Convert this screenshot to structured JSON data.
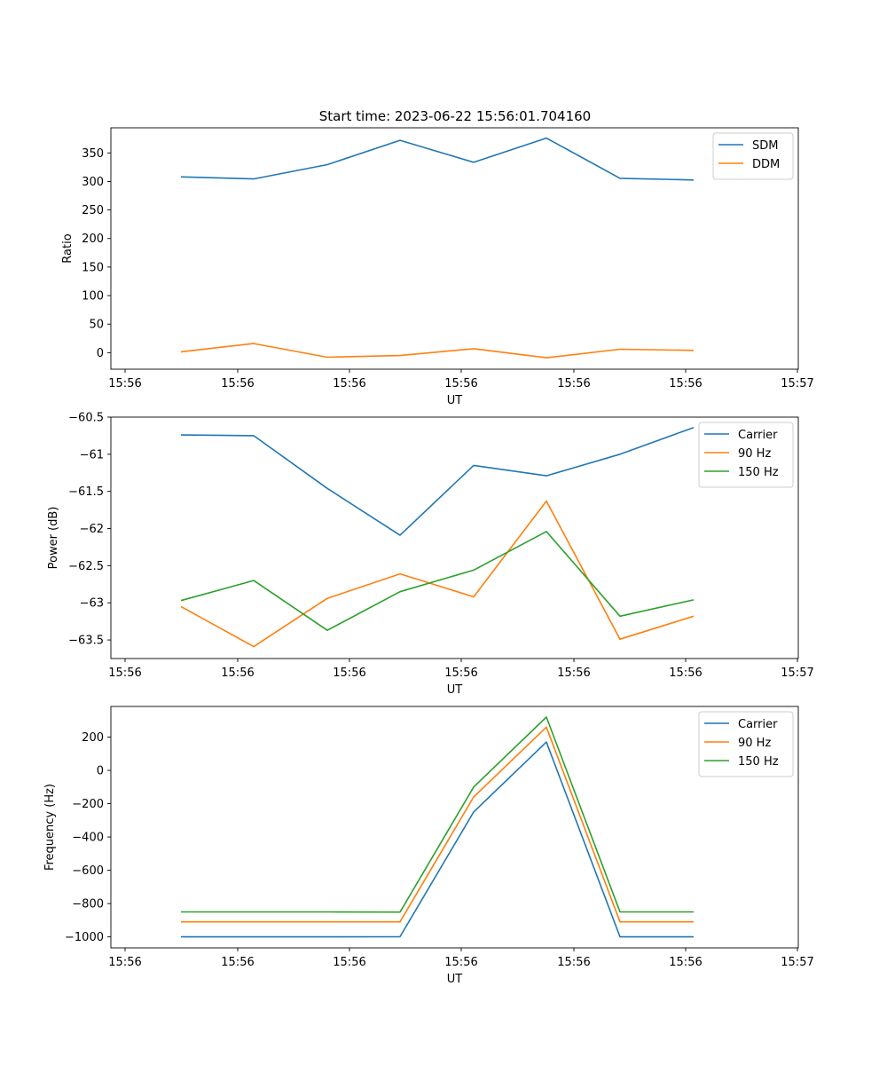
{
  "figure": {
    "title": "Start time: 2023-06-22 15:56:01.704160"
  },
  "chart_data": [
    {
      "type": "line",
      "title": "Start time: 2023-06-22 15:56:01.704160",
      "xlabel": "UT",
      "ylabel": "Ratio",
      "x_tick_labels": [
        "15:56",
        "15:56",
        "15:56",
        "15:56",
        "15:56",
        "15:56",
        "15:56",
        "15:57"
      ],
      "y_ticks": [
        0,
        50,
        100,
        150,
        200,
        250,
        300,
        350
      ],
      "ylim": [
        -29,
        394
      ],
      "grid": false,
      "legend_position": "top-right",
      "series": [
        {
          "name": "SDM",
          "color": "#1f77b4",
          "values": [
            308,
            304.5,
            329.5,
            372,
            333.5,
            376,
            305.5,
            302.5
          ]
        },
        {
          "name": "DDM",
          "color": "#ff7f0e",
          "values": [
            1.5,
            16,
            -8,
            -5,
            7,
            -9,
            6,
            4
          ]
        }
      ]
    },
    {
      "type": "line",
      "title": "",
      "xlabel": "UT",
      "ylabel": "Power (dB)",
      "x_tick_labels": [
        "15:56",
        "15:56",
        "15:56",
        "15:56",
        "15:56",
        "15:56",
        "15:56",
        "15:57"
      ],
      "y_ticks": [
        -60.5,
        -61.0,
        -61.5,
        -62.0,
        -62.5,
        -63.0,
        -63.5
      ],
      "ylim": [
        -63.75,
        -60.5
      ],
      "grid": false,
      "legend_position": "top-right",
      "series": [
        {
          "name": "Carrier",
          "color": "#1f77b4",
          "values": [
            -60.74,
            -60.75,
            -61.46,
            -62.09,
            -61.15,
            -61.29,
            -61.0,
            -60.64
          ]
        },
        {
          "name": "90 Hz",
          "color": "#ff7f0e",
          "values": [
            -63.05,
            -63.59,
            -62.94,
            -62.61,
            -62.92,
            -61.63,
            -63.49,
            -63.18
          ]
        },
        {
          "name": "150 Hz",
          "color": "#2ca02c",
          "values": [
            -62.97,
            -62.7,
            -63.37,
            -62.85,
            -62.56,
            -62.04,
            -63.18,
            -62.96
          ]
        }
      ]
    },
    {
      "type": "line",
      "title": "",
      "xlabel": "UT",
      "ylabel": "Frequency (Hz)",
      "x_tick_labels": [
        "15:56",
        "15:56",
        "15:56",
        "15:56",
        "15:56",
        "15:56",
        "15:56",
        "15:57"
      ],
      "y_ticks": [
        200,
        0,
        -200,
        -400,
        -600,
        -800,
        -1000
      ],
      "ylim": [
        -1066,
        384
      ],
      "grid": false,
      "legend_position": "top-right",
      "series": [
        {
          "name": "Carrier",
          "color": "#1f77b4",
          "values": [
            -1000,
            -1000,
            -1000,
            -999,
            -250,
            170,
            -1000,
            -1000
          ]
        },
        {
          "name": "90 Hz",
          "color": "#ff7f0e",
          "values": [
            -910,
            -910,
            -910,
            -910,
            -160,
            260,
            -910,
            -910
          ]
        },
        {
          "name": "150 Hz",
          "color": "#2ca02c",
          "values": [
            -850,
            -850,
            -850,
            -851,
            -100,
            320,
            -850,
            -850
          ]
        }
      ]
    }
  ]
}
